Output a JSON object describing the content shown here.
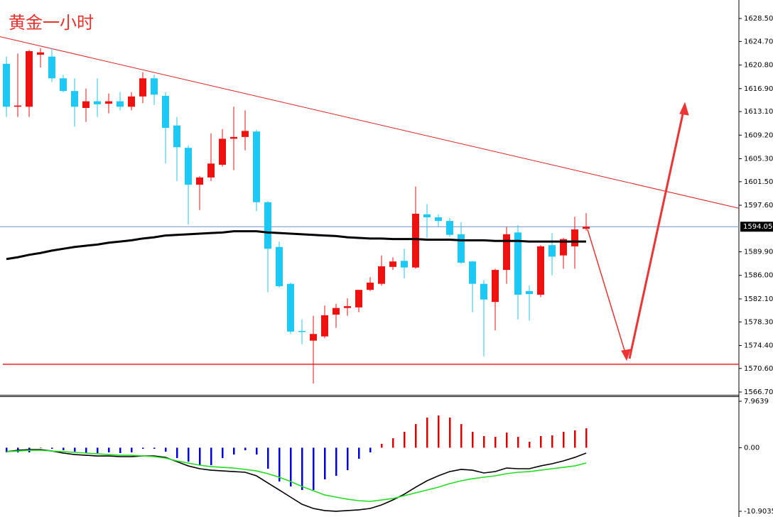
{
  "chart_data": [
    {
      "type": "candlestick",
      "title": "黄金一小时",
      "open": [
        1621.0,
        1613.9,
        1613.9,
        1622.5,
        1622.2,
        1618.6,
        1616.5,
        1613.7,
        1614.8,
        1614.4,
        1614.8,
        1613.9,
        1615.6,
        1618.6,
        1615.7,
        1610.8,
        1607.1,
        1601.0,
        1602.2,
        1604.3,
        1608.6,
        1608.9,
        1609.8,
        1598.1,
        1590.7,
        1584.6,
        1576.8,
        1575.2,
        1575.9,
        1579.5,
        1580.6,
        1580.7,
        1583.6,
        1584.6,
        1587.4,
        1588.4,
        1587.3,
        1596.1,
        1595.6,
        1595.0,
        1592.8,
        1588.3,
        1584.6,
        1581.6,
        1586.9,
        1593.1,
        1583.4,
        1582.8,
        1591.0,
        1589.3,
        1590.8,
        1593.7
      ],
      "high": [
        1622.2,
        1622.7,
        1623.3,
        1623.6,
        1623.6,
        1619.2,
        1618.6,
        1616.9,
        1618.6,
        1616.1,
        1616.3,
        1616.3,
        1619.6,
        1619.2,
        1616.3,
        1612.2,
        1607.5,
        1602.4,
        1609.5,
        1610.2,
        1613.9,
        1613.3,
        1610.1,
        1598.3,
        1591.6,
        1584.8,
        1578.7,
        1579.3,
        1581.0,
        1581.3,
        1582.2,
        1583.6,
        1585.7,
        1589.3,
        1589.0,
        1590.4,
        1600.7,
        1597.8,
        1596.1,
        1595.5,
        1594.8,
        1588.4,
        1585.2,
        1587.1,
        1594.0,
        1594.3,
        1584.3,
        1591.0,
        1593.0,
        1592.2,
        1595.7,
        1596.3
      ],
      "low": [
        1612.2,
        1612.2,
        1612.2,
        1620.4,
        1618.0,
        1616.3,
        1610.6,
        1611.4,
        1612.2,
        1612.8,
        1613.3,
        1613.3,
        1614.5,
        1614.2,
        1604.5,
        1601.6,
        1594.4,
        1596.8,
        1601.6,
        1604.0,
        1603.4,
        1606.7,
        1596.6,
        1583.2,
        1584.0,
        1576.3,
        1574.6,
        1568.1,
        1575.6,
        1577.3,
        1579.3,
        1579.9,
        1583.4,
        1584.3,
        1586.9,
        1585.5,
        1587.1,
        1592.2,
        1594.0,
        1592.4,
        1587.9,
        1579.9,
        1572.6,
        1576.9,
        1584.6,
        1578.7,
        1578.5,
        1582.4,
        1586.0,
        1587.1,
        1587.1,
        1593.4
      ],
      "close": [
        1613.9,
        1614.1,
        1623.1,
        1622.9,
        1618.6,
        1616.5,
        1613.9,
        1614.8,
        1614.3,
        1614.8,
        1613.9,
        1615.6,
        1618.6,
        1615.9,
        1610.4,
        1607.2,
        1601.0,
        1602.2,
        1604.5,
        1608.6,
        1608.9,
        1609.9,
        1598.1,
        1590.4,
        1584.2,
        1576.7,
        1576.7,
        1576.3,
        1579.4,
        1580.6,
        1580.9,
        1583.6,
        1584.8,
        1587.5,
        1588.3,
        1587.3,
        1596.2,
        1595.6,
        1595.0,
        1592.7,
        1588.1,
        1584.6,
        1582.0,
        1586.9,
        1592.8,
        1582.8,
        1582.9,
        1590.8,
        1589.1,
        1592.0,
        1593.6,
        1594.05
      ],
      "up_color": "#ee1111",
      "down_color": "#1ec8f5",
      "series": [
        {
          "color": "#000000",
          "values": [
            1588.7,
            1589.0,
            1589.4,
            1589.7,
            1590.1,
            1590.4,
            1590.7,
            1590.9,
            1591.1,
            1591.4,
            1591.6,
            1591.8,
            1592.1,
            1592.3,
            1592.6,
            1592.7,
            1592.8,
            1592.9,
            1593.0,
            1593.1,
            1593.3,
            1593.3,
            1593.3,
            1593.1,
            1593.0,
            1592.9,
            1592.8,
            1592.7,
            1592.6,
            1592.5,
            1592.3,
            1592.2,
            1592.1,
            1592.1,
            1592.0,
            1592.0,
            1592.0,
            1591.9,
            1591.9,
            1591.9,
            1591.8,
            1591.8,
            1591.8,
            1591.7,
            1591.7,
            1591.7,
            1591.6,
            1591.6,
            1591.6,
            1591.6,
            1591.6,
            1591.6
          ]
        }
      ],
      "last_price": 1594.05,
      "support_level": 1571.3,
      "trendline": [
        1625.5,
        1597.1
      ],
      "ylim": [
        1566.23,
        1631.56
      ],
      "yticks": [
        {
          "value": 1628.5,
          "label": "1628.50"
        },
        {
          "value": 1624.7,
          "label": "1624.70"
        },
        {
          "value": 1620.8,
          "label": "1620.80"
        },
        {
          "value": 1616.9,
          "label": "1616.90"
        },
        {
          "value": 1613.1,
          "label": "1613.10"
        },
        {
          "value": 1609.2,
          "label": "1609.20"
        },
        {
          "value": 1605.3,
          "label": "1605.30"
        },
        {
          "value": 1601.5,
          "label": "1601.50"
        },
        {
          "value": 1597.6,
          "label": "1597.60"
        },
        {
          "value": 1589.9,
          "label": "1589.90"
        },
        {
          "value": 1586.0,
          "label": "1586.00"
        },
        {
          "value": 1582.1,
          "label": "1582.10"
        },
        {
          "value": 1578.3,
          "label": "1578.30"
        },
        {
          "value": 1574.4,
          "label": "1574.40"
        },
        {
          "value": 1570.6,
          "label": "1570.60"
        },
        {
          "value": 1566.7,
          "label": "1566.70"
        }
      ]
    },
    {
      "type": "macd",
      "histogram": [
        -0.8,
        -0.8,
        -0.8,
        -0.07,
        -0.19,
        -0.44,
        -0.68,
        -0.92,
        -0.92,
        -0.8,
        -0.92,
        -0.8,
        -0.19,
        -0.19,
        -0.68,
        -1.78,
        -2.39,
        -2.99,
        -2.99,
        -1.78,
        -1.17,
        -0.44,
        -1.17,
        -3.6,
        -5.79,
        -6.64,
        -7.25,
        -7.25,
        -5.43,
        -4.82,
        -3.85,
        -1.9,
        -0.8,
        0.66,
        1.63,
        2.73,
        4.06,
        5.16,
        5.53,
        5.16,
        4.06,
        2.73,
        2.0,
        1.87,
        2.6,
        1.87,
        1.02,
        2.0,
        2.12,
        2.73,
        2.97,
        3.33
      ],
      "pos_color": "#e00000",
      "neg_color": "#0000dd",
      "series": [
        {
          "color": "#000000",
          "values": [
            -0.68,
            -0.44,
            -0.32,
            -0.32,
            -0.56,
            -0.92,
            -1.17,
            -1.29,
            -1.41,
            -1.41,
            -1.53,
            -1.53,
            -1.41,
            -1.41,
            -1.66,
            -2.39,
            -3.12,
            -3.6,
            -3.85,
            -3.97,
            -4.09,
            -4.21,
            -4.82,
            -6.04,
            -7.25,
            -8.47,
            -9.69,
            -10.42,
            -10.78,
            -10.9,
            -10.78,
            -10.66,
            -10.42,
            -9.81,
            -8.96,
            -7.98,
            -6.77,
            -5.67,
            -4.82,
            -4.09,
            -3.72,
            -3.85,
            -4.33,
            -4.09,
            -3.48,
            -3.6,
            -3.6,
            -3.12,
            -2.75,
            -2.26,
            -1.66,
            -0.92
          ]
        },
        {
          "color": "#22dd22",
          "values": [
            -0.68,
            -0.56,
            -0.44,
            -0.44,
            -0.56,
            -0.68,
            -0.8,
            -0.92,
            -1.05,
            -1.17,
            -1.29,
            -1.29,
            -1.41,
            -1.53,
            -1.78,
            -2.26,
            -2.63,
            -2.99,
            -3.24,
            -3.36,
            -3.48,
            -3.72,
            -3.97,
            -4.45,
            -5.06,
            -5.79,
            -6.64,
            -7.37,
            -8.1,
            -8.47,
            -8.83,
            -9.08,
            -9.2,
            -8.96,
            -8.71,
            -8.23,
            -7.74,
            -7.25,
            -6.77,
            -6.16,
            -5.67,
            -5.31,
            -5.06,
            -4.82,
            -4.45,
            -4.21,
            -4.09,
            -3.85,
            -3.6,
            -3.36,
            -3.12,
            -2.63
          ]
        }
      ],
      "ylim": [
        -11.88,
        8.82
      ],
      "yticks": [
        7.9639,
        {
          "value": 0,
          "label": "0.00"
        },
        -10.9035
      ]
    }
  ]
}
